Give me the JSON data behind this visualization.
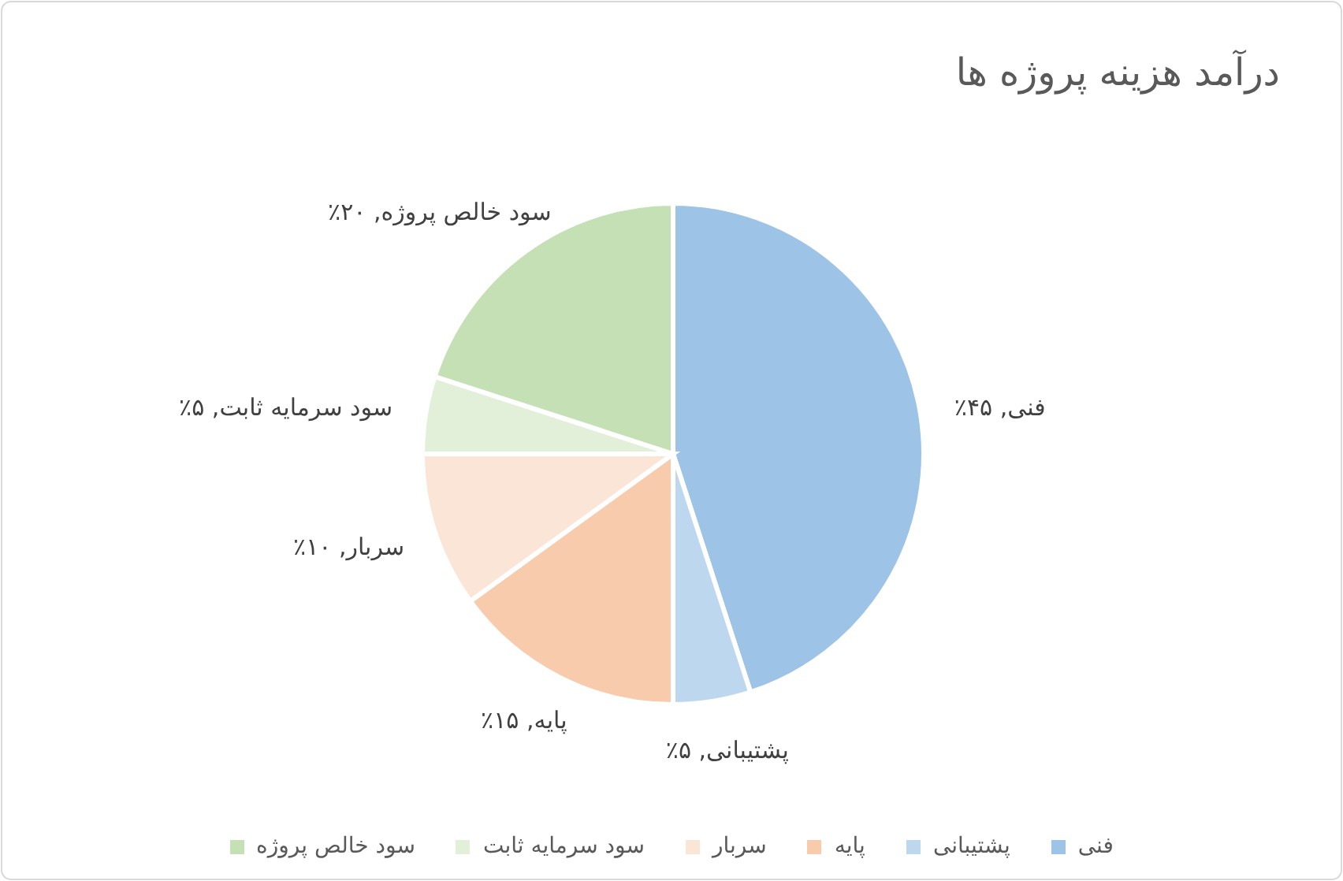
{
  "chart_data": {
    "type": "pie",
    "title": "درآمد هزینه پروژه ها",
    "categories": [
      "فنی",
      "پشتیبانی",
      "پایه",
      "سربار",
      "سود سرمایه ثابت",
      "سود خالص پروژه"
    ],
    "values": [
      45,
      5,
      15,
      10,
      5,
      20
    ],
    "colors": [
      "#9dc3e6",
      "#bdd7ee",
      "#f8cbad",
      "#fbe5d6",
      "#e2f0d9",
      "#c5e0b4"
    ],
    "value_labels": [
      "فنی, ۴۵٪",
      "پشتیبانی, ۵٪",
      "پایه, ۱۵٪",
      "سربار, ۱۰٪",
      "سود سرمایه ثابت, ۵٪",
      "سود خالص پروژه, ۲۰٪"
    ],
    "legend": "bottom"
  }
}
